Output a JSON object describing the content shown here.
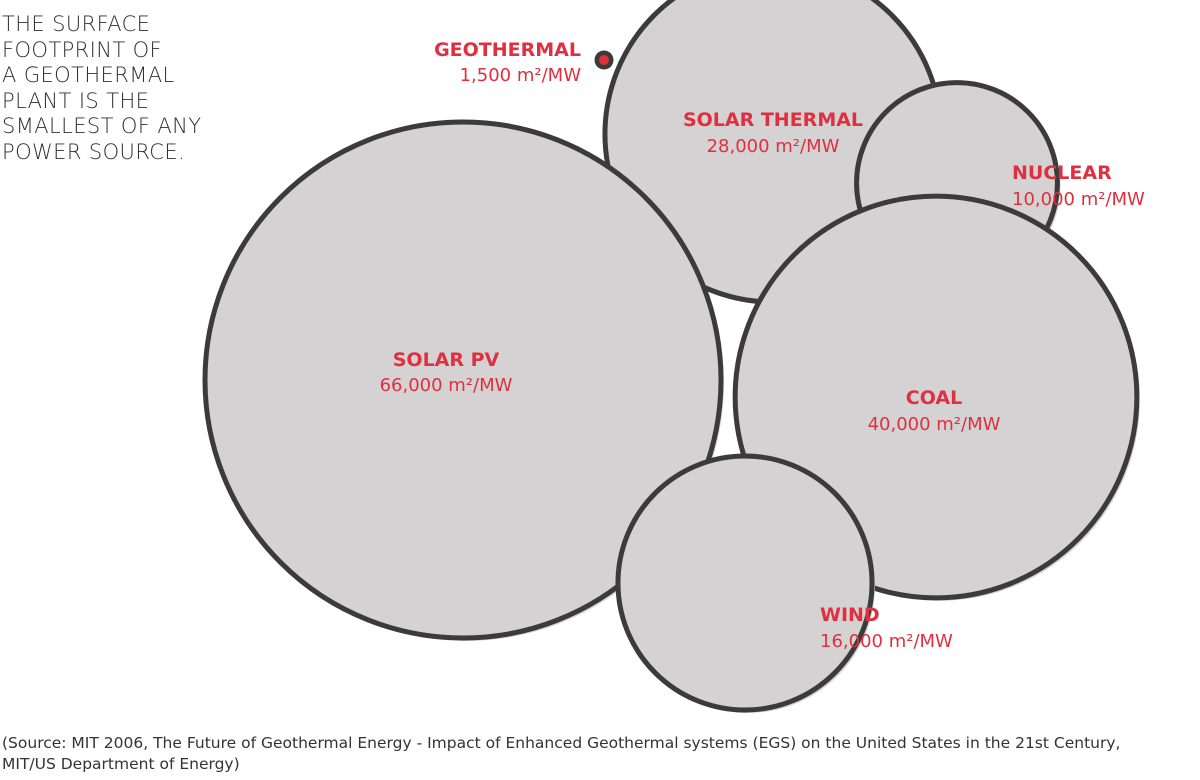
{
  "headline": {
    "lines": [
      "THE SURFACE",
      "FOOTPRINT OF",
      "A GEOTHERMAL",
      "PLANT IS THE",
      "SMALLEST OF ANY",
      "POWER SOURCE."
    ]
  },
  "source": {
    "lines": [
      "(Source: MIT 2006, The Future of Geothermal Energy - Impact of Enhanced Geothermal systems (EGS) on the United States in the 21st Century,",
      "MIT/US Department of Energy)"
    ]
  },
  "colors": {
    "label": "#e0303f",
    "bubble_fill": "#d4d2d3",
    "bubble_stroke": "#3b3b3b",
    "geothermal_dot": "#e0303f",
    "text": "#2f2f2f"
  },
  "chart_data": {
    "type": "bubble",
    "unit": "m²/MW",
    "series": [
      {
        "name": "GEOTHERMAL",
        "label": "1,500 m²/MW",
        "value": 1500
      },
      {
        "name": "SOLAR THERMAL",
        "label": "28,000 m²/MW",
        "value": 28000
      },
      {
        "name": "NUCLEAR",
        "label": "10,000 m²/MW",
        "value": 10000
      },
      {
        "name": "SOLAR PV",
        "label": "66,000 m²/MW",
        "value": 66000
      },
      {
        "name": "COAL",
        "label": "40,000 m²/MW",
        "value": 40000
      },
      {
        "name": "WIND",
        "label": "16,000 m²/MW",
        "value": 16000
      }
    ]
  }
}
